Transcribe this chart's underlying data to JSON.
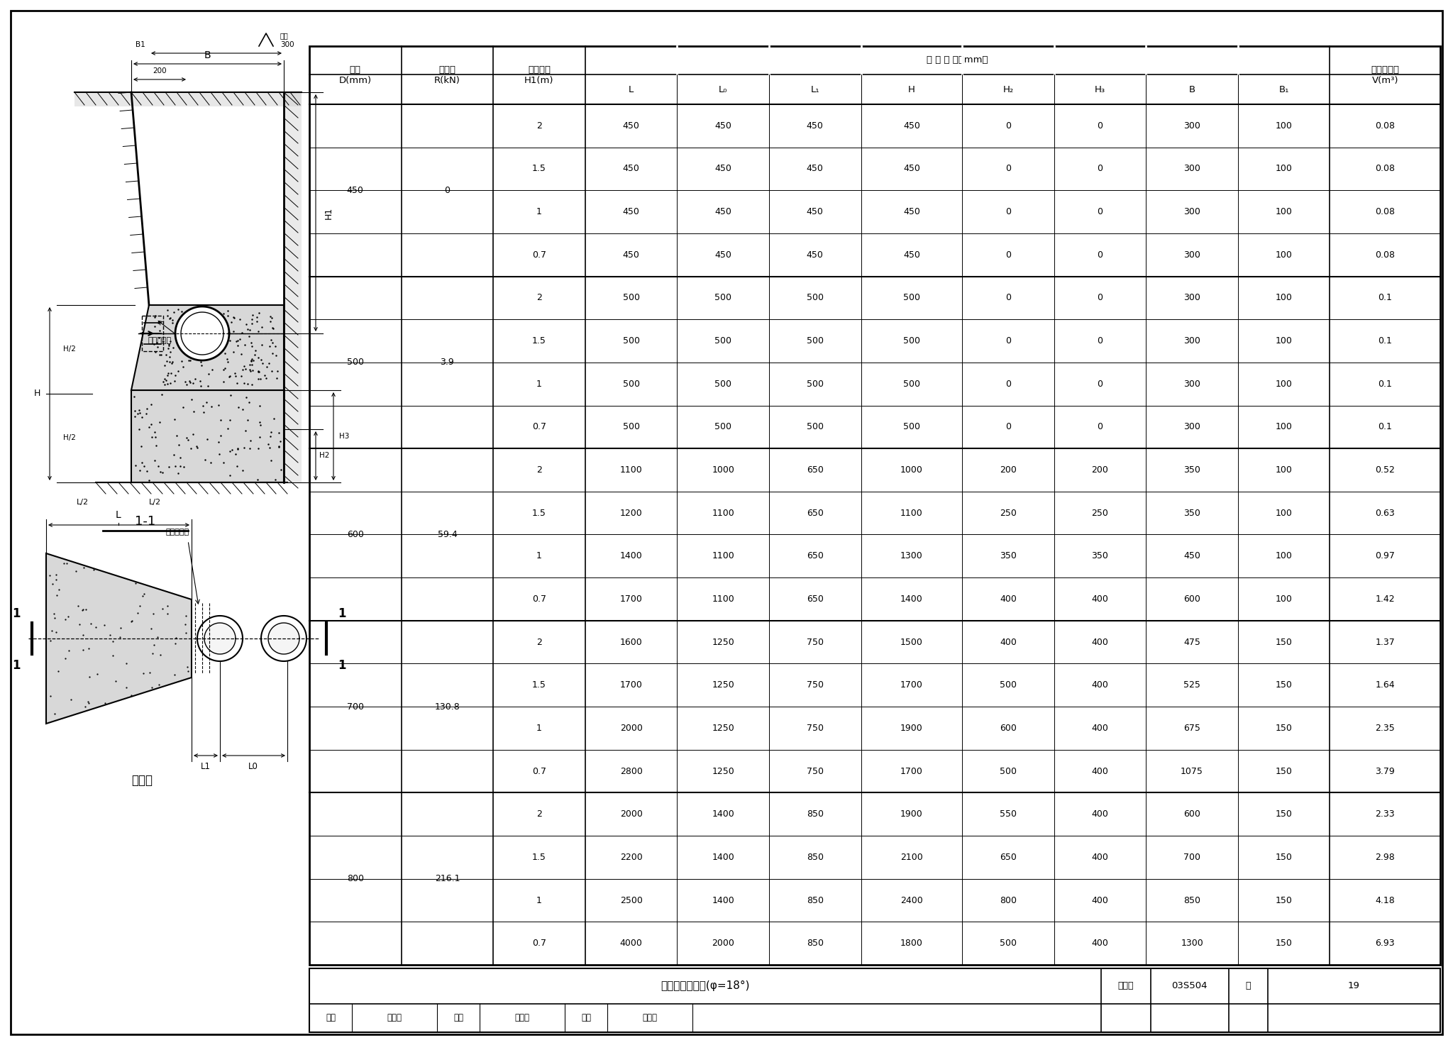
{
  "page_title": "水平管墩支墩图(φ=18°)",
  "figure_number": "03S504",
  "page_number": "19",
  "table_data": [
    [
      450,
      0,
      2,
      450,
      450,
      450,
      450,
      0,
      0,
      300,
      100,
      0.08
    ],
    [
      450,
      0,
      1.5,
      450,
      450,
      450,
      450,
      0,
      0,
      300,
      100,
      0.08
    ],
    [
      450,
      0,
      1,
      450,
      450,
      450,
      450,
      0,
      0,
      300,
      100,
      0.08
    ],
    [
      450,
      0,
      0.7,
      450,
      450,
      450,
      450,
      0,
      0,
      300,
      100,
      0.08
    ],
    [
      500,
      3.9,
      2,
      500,
      500,
      500,
      500,
      0,
      0,
      300,
      100,
      0.1
    ],
    [
      500,
      3.9,
      1.5,
      500,
      500,
      500,
      500,
      0,
      0,
      300,
      100,
      0.1
    ],
    [
      500,
      3.9,
      1,
      500,
      500,
      500,
      500,
      0,
      0,
      300,
      100,
      0.1
    ],
    [
      500,
      3.9,
      0.7,
      500,
      500,
      500,
      500,
      0,
      0,
      300,
      100,
      0.1
    ],
    [
      600,
      59.4,
      2,
      1100,
      1000,
      650,
      1000,
      200,
      200,
      350,
      100,
      0.52
    ],
    [
      600,
      59.4,
      1.5,
      1200,
      1100,
      650,
      1100,
      250,
      250,
      350,
      100,
      0.63
    ],
    [
      600,
      59.4,
      1,
      1400,
      1100,
      650,
      1300,
      350,
      350,
      450,
      100,
      0.97
    ],
    [
      600,
      59.4,
      0.7,
      1700,
      1100,
      650,
      1400,
      400,
      400,
      600,
      100,
      1.42
    ],
    [
      700,
      130.8,
      2,
      1600,
      1250,
      750,
      1500,
      400,
      400,
      475,
      150,
      1.37
    ],
    [
      700,
      130.8,
      1.5,
      1700,
      1250,
      750,
      1700,
      500,
      400,
      525,
      150,
      1.64
    ],
    [
      700,
      130.8,
      1,
      2000,
      1250,
      750,
      1900,
      600,
      400,
      675,
      150,
      2.35
    ],
    [
      700,
      130.8,
      0.7,
      2800,
      1250,
      750,
      1700,
      500,
      400,
      1075,
      150,
      3.79
    ],
    [
      800,
      216.1,
      2,
      2000,
      1400,
      850,
      1900,
      550,
      400,
      600,
      150,
      2.33
    ],
    [
      800,
      216.1,
      1.5,
      2200,
      1400,
      850,
      2100,
      650,
      400,
      700,
      150,
      2.98
    ],
    [
      800,
      216.1,
      1,
      2500,
      1400,
      850,
      2400,
      800,
      400,
      850,
      150,
      4.18
    ],
    [
      800,
      216.1,
      0.7,
      4000,
      2000,
      850,
      1800,
      500,
      400,
      1300,
      150,
      6.93
    ]
  ],
  "pipe_groups": [
    {
      "diam": "450",
      "r": "0",
      "rows": [
        0,
        1,
        2,
        3
      ]
    },
    {
      "diam": "500",
      "r": "3.9",
      "rows": [
        4,
        5,
        6,
        7
      ]
    },
    {
      "diam": "600",
      "r": "59.4",
      "rows": [
        8,
        9,
        10,
        11
      ]
    },
    {
      "diam": "700",
      "r": "130.8",
      "rows": [
        12,
        13,
        14,
        15
      ]
    },
    {
      "diam": "800",
      "r": "216.1",
      "rows": [
        16,
        17,
        18,
        19
      ]
    }
  ],
  "bg_color": "#ffffff"
}
